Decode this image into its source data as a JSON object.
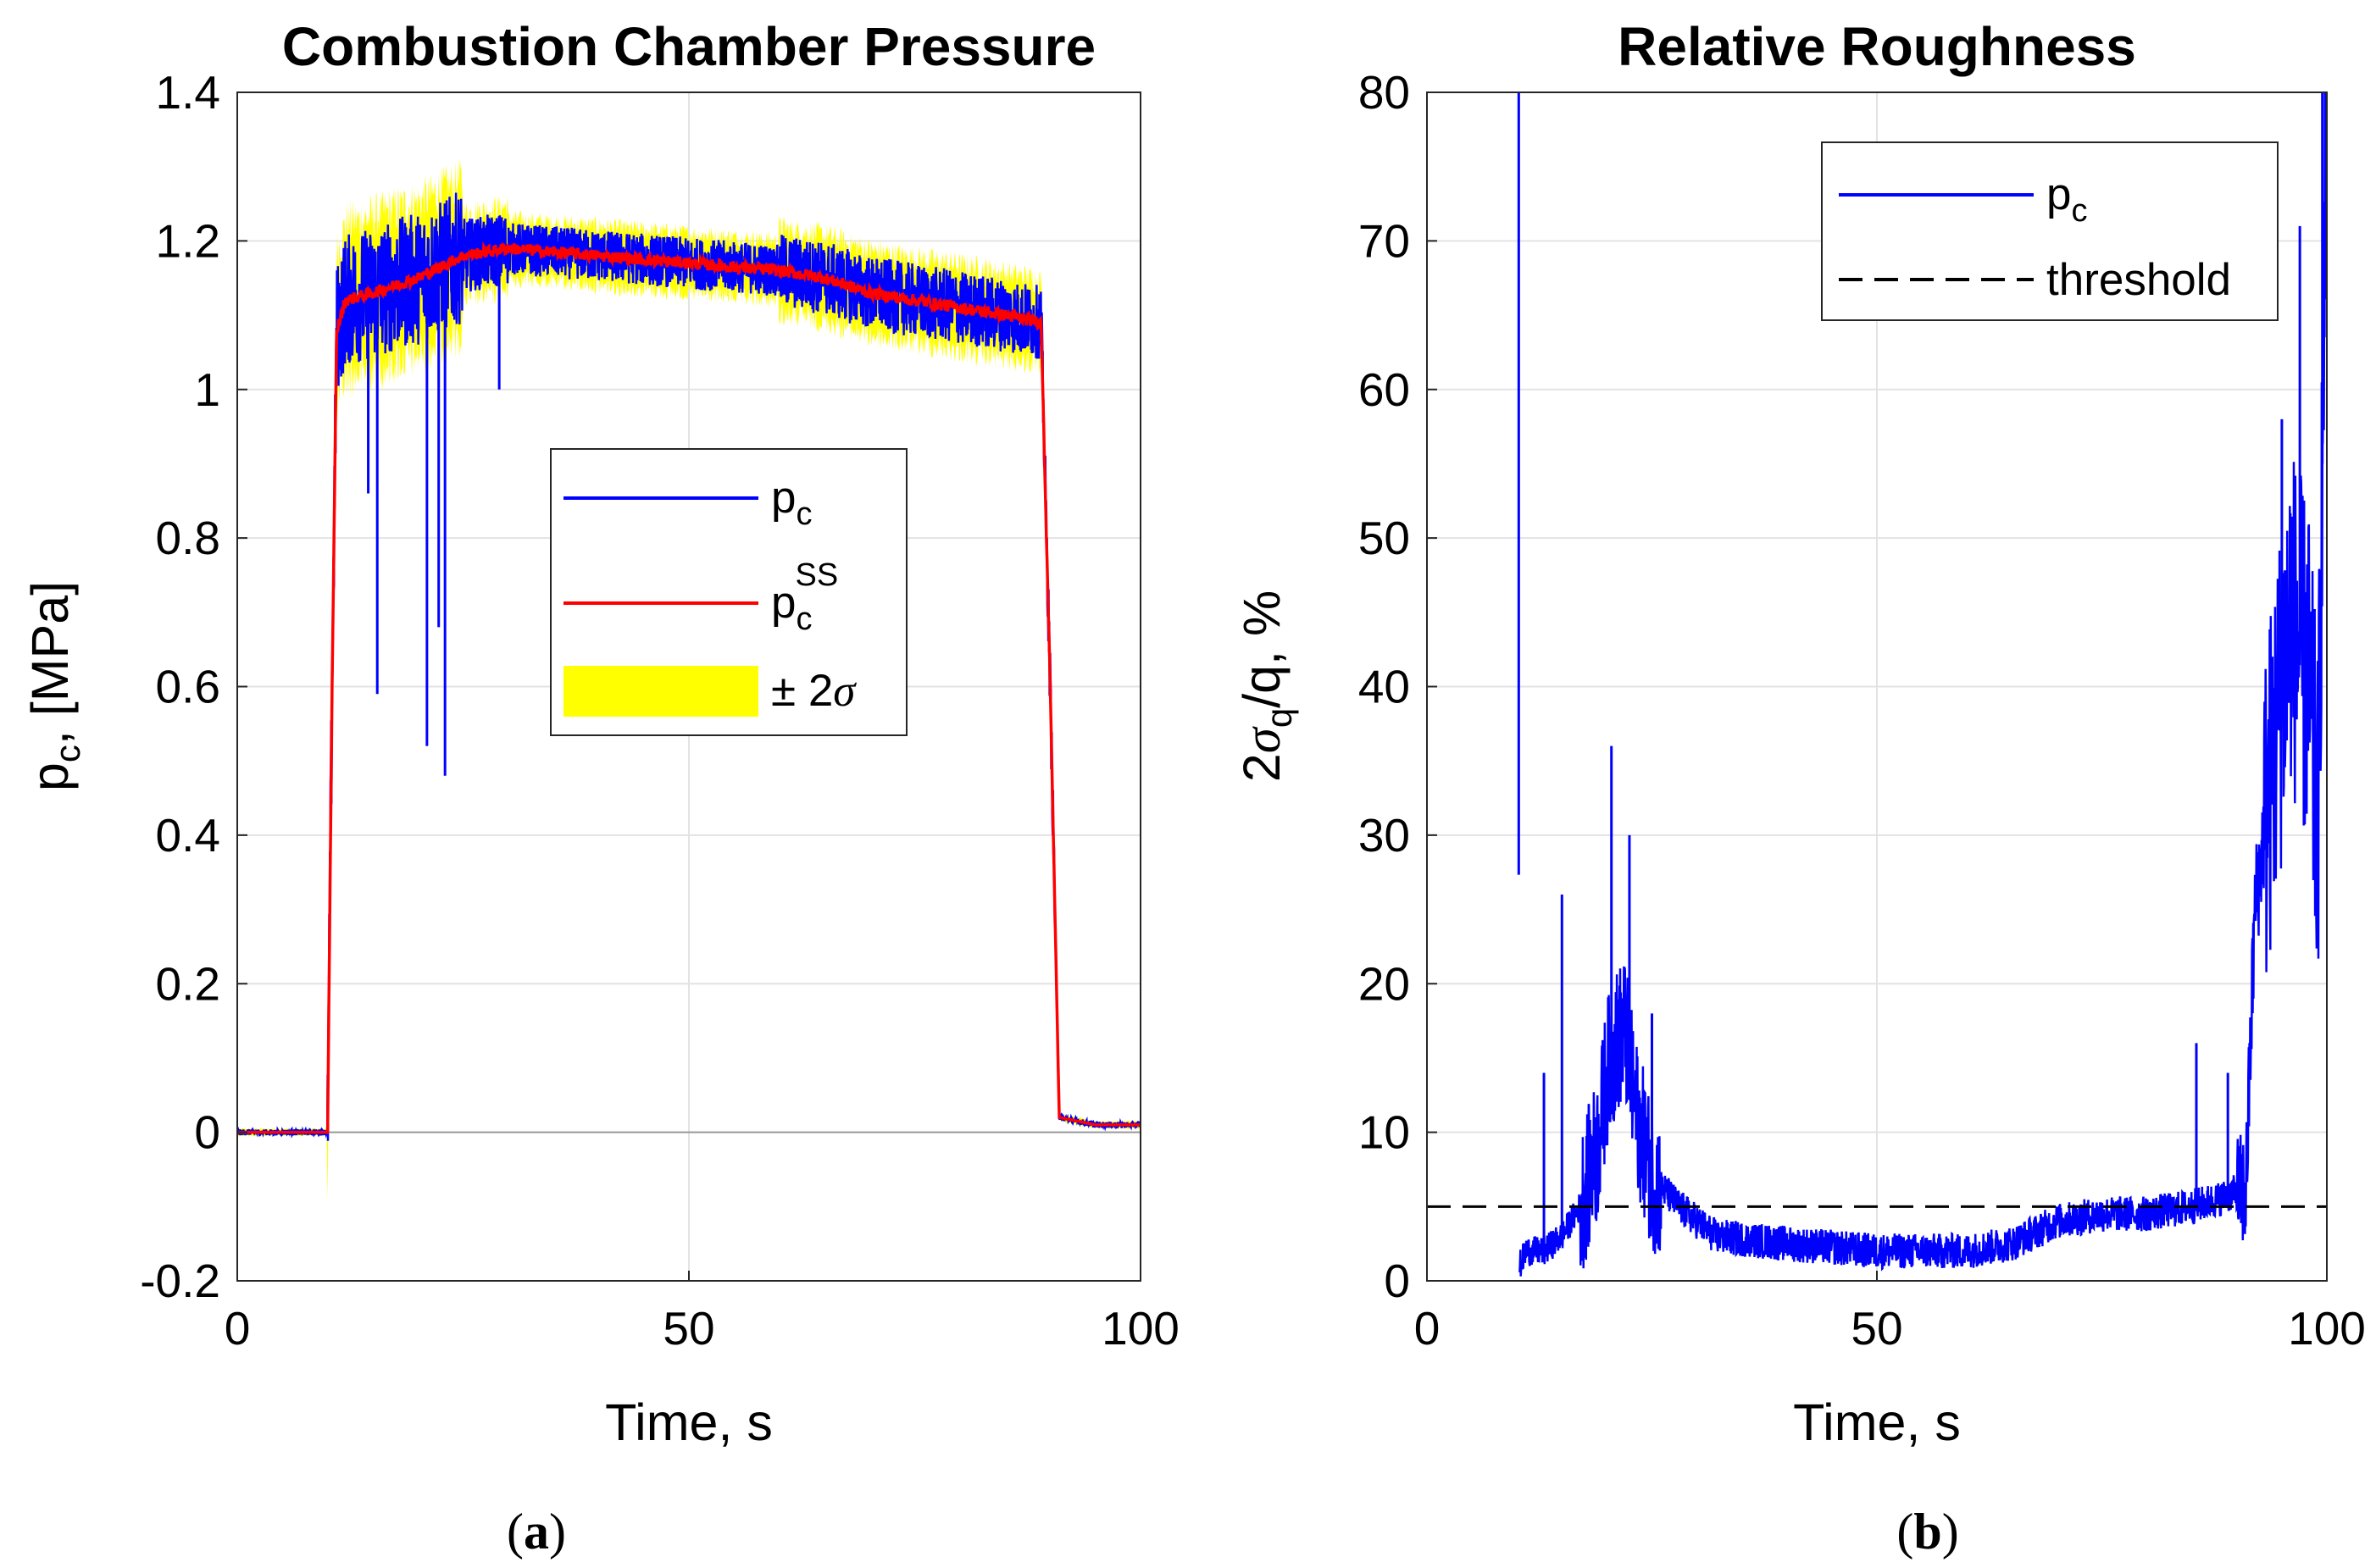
{
  "chart_data": [
    {
      "type": "line",
      "title": "Combustion Chamber Pressure",
      "xlabel": "Time, s",
      "ylabel": "p_c, [MPa]",
      "xlim": [
        0,
        100
      ],
      "ylim": [
        -0.2,
        1.4
      ],
      "xticks": [
        "0",
        "50",
        "100"
      ],
      "yticks": [
        "-0.2",
        "0",
        "0.2",
        "0.4",
        "0.6",
        "0.8",
        "1",
        "1.2",
        "1.4"
      ],
      "grid": true,
      "legend_position": "center",
      "series": [
        {
          "name": "p_c",
          "color": "#0000ff",
          "x": [
            0,
            10,
            10.5,
            11,
            12,
            15,
            20,
            25,
            30,
            40,
            50,
            60,
            65,
            70,
            80,
            85,
            89,
            90,
            91,
            95,
            100
          ],
          "y": [
            0,
            0,
            0.6,
            1.08,
            1.12,
            1.13,
            1.15,
            1.18,
            1.19,
            1.18,
            1.17,
            1.16,
            1.15,
            1.13,
            1.11,
            1.1,
            1.09,
            0.6,
            0.02,
            0.01,
            0.01
          ]
        },
        {
          "name": "p_c^SS",
          "color": "#ff0000",
          "x": [
            0,
            10,
            10.5,
            11,
            12,
            15,
            20,
            25,
            30,
            40,
            50,
            60,
            65,
            70,
            80,
            85,
            89,
            90,
            91,
            95,
            100
          ],
          "y": [
            0,
            0,
            0.6,
            1.08,
            1.12,
            1.13,
            1.15,
            1.18,
            1.19,
            1.18,
            1.17,
            1.16,
            1.15,
            1.13,
            1.11,
            1.1,
            1.09,
            0.6,
            0.02,
            0.01,
            0.01
          ]
        },
        {
          "name": "± 2σ",
          "color": "#ffff00",
          "band": "yellow spread around p_c^SS (±2σ envelope)"
        }
      ],
      "dips": [
        {
          "x": 14.5,
          "y": 0.86
        },
        {
          "x": 15.5,
          "y": 0.59
        },
        {
          "x": 21,
          "y": 0.52
        },
        {
          "x": 22.3,
          "y": 0.68
        },
        {
          "x": 23,
          "y": 0.48
        },
        {
          "x": 29,
          "y": 1.0
        }
      ]
    },
    {
      "type": "line",
      "title": "Relative Roughness",
      "xlabel": "Time, s",
      "ylabel": "2σ_q/q, %",
      "xlim": [
        0,
        100
      ],
      "ylim": [
        0,
        80
      ],
      "xticks": [
        "0",
        "50",
        "100"
      ],
      "yticks": [
        "0",
        "10",
        "20",
        "30",
        "40",
        "50",
        "60",
        "70",
        "80"
      ],
      "grid": true,
      "legend_position": "top-right",
      "series": [
        {
          "name": "p_c",
          "color": "#0000ff",
          "x": [
            10,
            10.3,
            11,
            13,
            15,
            17,
            19,
            20,
            21,
            22,
            23,
            25,
            28,
            32,
            40,
            50,
            60,
            65,
            70,
            75,
            80,
            85,
            88,
            90,
            91,
            92,
            94,
            96,
            98,
            99,
            100
          ],
          "y": [
            80,
            1,
            2,
            2,
            3,
            5,
            9,
            14,
            16,
            17,
            12,
            7,
            5,
            3,
            2.5,
            2,
            2,
            2.5,
            4,
            4.5,
            4.5,
            5,
            5.5,
            6,
            6,
            25,
            35,
            45,
            40,
            30,
            80
          ]
        },
        {
          "name": "threshold",
          "color": "#000000",
          "dashed": true,
          "x": [
            0,
            100
          ],
          "y": [
            5,
            5
          ]
        }
      ],
      "spikes": [
        {
          "x": 10.2,
          "y": 80
        },
        {
          "x": 13,
          "y": 14
        },
        {
          "x": 15,
          "y": 26
        },
        {
          "x": 20.5,
          "y": 36
        },
        {
          "x": 22.5,
          "y": 30
        },
        {
          "x": 25,
          "y": 18
        },
        {
          "x": 85.5,
          "y": 16
        },
        {
          "x": 89,
          "y": 14
        },
        {
          "x": 95,
          "y": 58
        },
        {
          "x": 97,
          "y": 71
        },
        {
          "x": 99.5,
          "y": 80
        }
      ]
    }
  ],
  "panel_labels": {
    "a": "(a)",
    "b": "(b)"
  }
}
